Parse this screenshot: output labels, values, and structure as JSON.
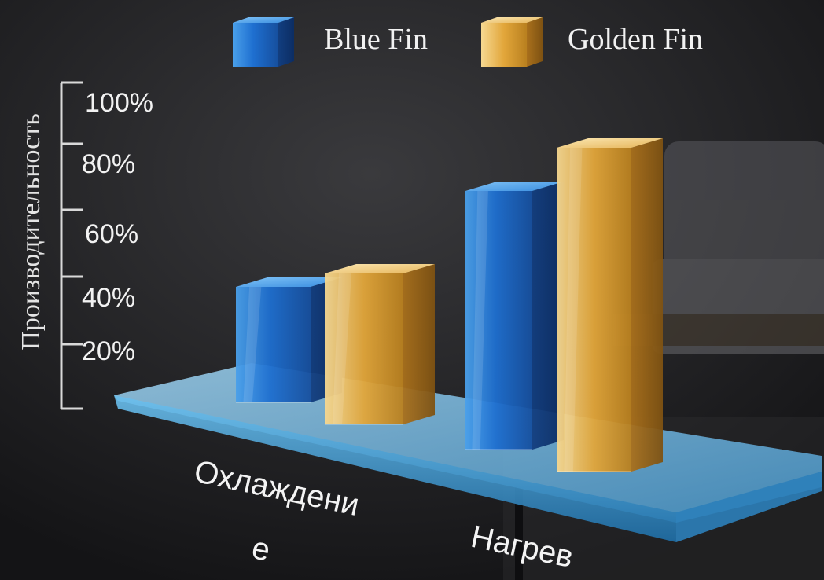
{
  "chart_data": {
    "type": "bar",
    "title": "",
    "xlabel": "",
    "ylabel": "Производительность",
    "categories": [
      "Охлаждение",
      "Нагрев"
    ],
    "category_lines": [
      [
        "Охлаждени",
        "е"
      ],
      [
        "Нагрев"
      ]
    ],
    "series": [
      {
        "name": "Blue Fin",
        "color": "#1e6fd0",
        "values": [
          36,
          70
        ]
      },
      {
        "name": "Golden Fin",
        "color": "#e2a63a",
        "values": [
          42,
          86
        ]
      }
    ],
    "yticks": [
      "20%",
      "40%",
      "60%",
      "80%",
      "100%"
    ],
    "ylim": [
      0,
      100
    ],
    "legend_position": "top",
    "grid": false,
    "style": "3d glass columns on a tilted transparent platform"
  }
}
